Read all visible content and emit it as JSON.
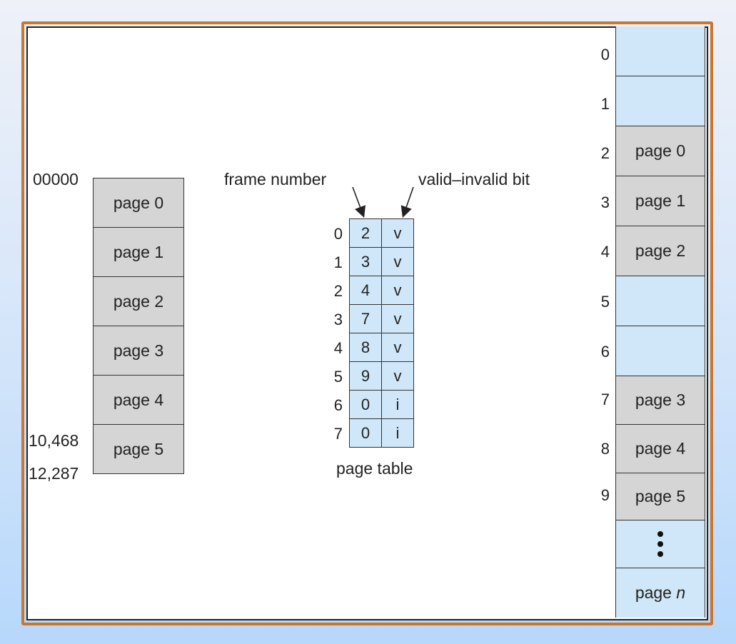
{
  "logical_memory": {
    "pages": [
      "page 0",
      "page 1",
      "page 2",
      "page 3",
      "page 4",
      "page 5"
    ],
    "address_start": "00000",
    "address_last_page": "10,468",
    "address_end": "12,287"
  },
  "page_table": {
    "caption": "page table",
    "frame_label": "frame number",
    "valid_label": "valid–invalid bit",
    "rows": [
      {
        "index": "0",
        "frame": "2",
        "bit": "v"
      },
      {
        "index": "1",
        "frame": "3",
        "bit": "v"
      },
      {
        "index": "2",
        "frame": "4",
        "bit": "v"
      },
      {
        "index": "3",
        "frame": "7",
        "bit": "v"
      },
      {
        "index": "4",
        "frame": "8",
        "bit": "v"
      },
      {
        "index": "5",
        "frame": "9",
        "bit": "v"
      },
      {
        "index": "6",
        "frame": "0",
        "bit": "i"
      },
      {
        "index": "7",
        "frame": "0",
        "bit": "i"
      }
    ]
  },
  "physical_memory": {
    "frames": [
      {
        "index": "0",
        "label": ""
      },
      {
        "index": "1",
        "label": ""
      },
      {
        "index": "2",
        "label": "page 0"
      },
      {
        "index": "3",
        "label": "page 1"
      },
      {
        "index": "4",
        "label": "page 2"
      },
      {
        "index": "5",
        "label": ""
      },
      {
        "index": "6",
        "label": ""
      },
      {
        "index": "7",
        "label": "page 3"
      },
      {
        "index": "8",
        "label": "page 4"
      },
      {
        "index": "9",
        "label": "page 5"
      },
      {
        "index": "",
        "label": ""
      },
      {
        "index": "",
        "label": "page n"
      }
    ],
    "last_page_prefix": "page",
    "last_page_var": "n"
  },
  "colors": {
    "border_orange": "#c9762e",
    "free_frame": "#cfe7f8",
    "used_frame": "#d5d5d5"
  }
}
